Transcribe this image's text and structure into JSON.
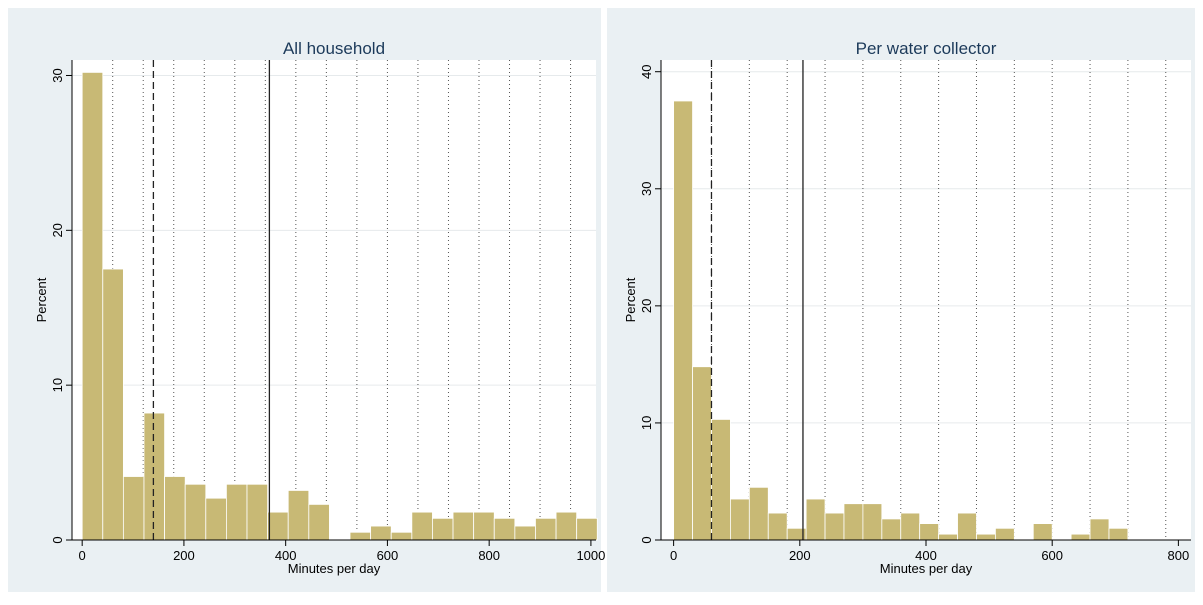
{
  "chart_data": [
    {
      "type": "bar",
      "title": "All household",
      "xlabel": "Minutes per day",
      "ylabel": "Percent",
      "xlim": [
        -20,
        1010
      ],
      "ylim": [
        0,
        31
      ],
      "x_ticks": [
        0,
        200,
        400,
        600,
        800,
        1000
      ],
      "y_ticks": [
        0,
        10,
        20,
        30
      ],
      "bin_width": 40.5,
      "bin_starts": [
        0,
        40.5,
        81,
        121.5,
        162,
        202.5,
        243,
        283.5,
        324,
        364.5,
        405,
        445.5,
        486,
        526.5,
        567,
        607.5,
        648,
        688.5,
        729,
        769.5,
        810,
        850.5,
        891,
        931.5,
        972
      ],
      "values": [
        30.2,
        17.5,
        4.1,
        8.2,
        4.1,
        3.6,
        2.7,
        3.6,
        3.6,
        1.8,
        3.2,
        2.3,
        0,
        0.5,
        0.9,
        0.5,
        1.8,
        1.4,
        1.8,
        1.8,
        1.4,
        0.9,
        1.4,
        1.8,
        1.4
      ],
      "median_line_x": 140,
      "mean_line_x": 368,
      "vertical_dotted_grid_x": [
        60,
        120,
        180,
        240,
        300,
        360,
        420,
        480,
        540,
        600,
        660,
        720,
        780,
        840,
        900,
        960
      ],
      "bar_color": "#c8b975",
      "grid": true
    },
    {
      "type": "bar",
      "title": "Per water collector",
      "xlabel": "Minutes per day",
      "ylabel": "Percent",
      "xlim": [
        -20,
        820
      ],
      "ylim": [
        0,
        41
      ],
      "x_ticks": [
        0,
        200,
        400,
        600,
        800
      ],
      "y_ticks": [
        0,
        10,
        20,
        30,
        40
      ],
      "bin_width": 30,
      "bin_starts": [
        0,
        30,
        60,
        90,
        120,
        150,
        180,
        210,
        240,
        270,
        300,
        330,
        360,
        390,
        420,
        450,
        480,
        510,
        540,
        570,
        600,
        630,
        660,
        690
      ],
      "values": [
        37.5,
        14.8,
        10.3,
        3.5,
        4.5,
        2.3,
        1.0,
        3.5,
        2.3,
        3.1,
        3.1,
        1.8,
        2.3,
        1.4,
        0.5,
        2.3,
        0.5,
        1.0,
        0,
        1.4,
        0,
        0.5,
        1.8,
        1.0
      ],
      "median_line_x": 60,
      "mean_line_x": 205,
      "vertical_dotted_grid_x": [
        60,
        120,
        180,
        240,
        300,
        360,
        420,
        480,
        540,
        600,
        660,
        720,
        780
      ],
      "bar_color": "#c8b975",
      "grid": true
    }
  ],
  "colors": {
    "outer_bg": "#eaf0f3",
    "plot_bg": "#ffffff",
    "bar_fill": "#c8b975",
    "bar_edge": "#ffffff",
    "title": "#1c3a5a"
  }
}
